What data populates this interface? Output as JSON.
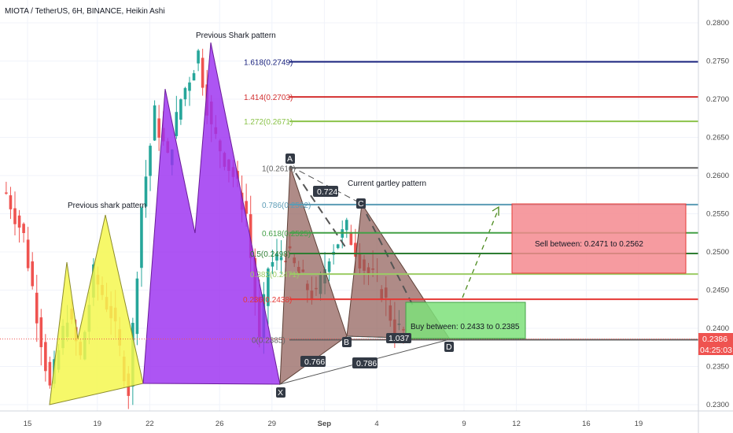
{
  "header": {
    "title": "MIOTA / TetherUS, 6H, BINANCE, Heikin Ashi"
  },
  "chart_data": {
    "type": "candlestick",
    "title": "MIOTA / TetherUS, 6H, BINANCE, Heikin Ashi",
    "y_ticks": [
      "0.2800",
      "0.2750",
      "0.2700",
      "0.2650",
      "0.2600",
      "0.2550",
      "0.2500",
      "0.2450",
      "0.2400",
      "0.2350",
      "0.2300"
    ],
    "x_ticks": [
      {
        "label": "15",
        "idx": 2
      },
      {
        "label": "19",
        "idx": 18
      },
      {
        "label": "22",
        "idx": 30
      },
      {
        "label": "26",
        "idx": 46
      },
      {
        "label": "29",
        "idx": 58
      },
      {
        "label": "Sep",
        "idx": 70
      },
      {
        "label": "4",
        "idx": 82
      },
      {
        "label": "9",
        "idx": 102
      },
      {
        "label": "12",
        "idx": 114
      },
      {
        "label": "16",
        "idx": 130
      },
      {
        "label": "19",
        "idx": 142
      }
    ],
    "ylim": [
      0.2287,
      0.2825
    ],
    "price_badge": "0.2386",
    "countdown_badge": "04:25:03",
    "current_price": 0.2386,
    "colors": {
      "up": "#26a69a",
      "down": "#ef5350",
      "bg": "#ffffff"
    },
    "annotations": {
      "previous_shark_left": "Previous shark pattern",
      "previous_shark_top": "Previous Shark pattern",
      "current_gartley": "Current gartley pattern",
      "point_A": "A",
      "point_B": "B",
      "point_C": "C",
      "point_D": "D",
      "point_X": "X",
      "ratio_xa_c": "0.724",
      "ratio_xb": "0.766",
      "ratio_xd": "0.786",
      "ratio_bd": "1.037",
      "sell_zone": "Sell between: 0.2471 to 0.2562",
      "buy_zone": "Buy between: 0.2433 to 0.2385"
    },
    "fib_levels": [
      {
        "label": "1.618(0.2749)",
        "value": 0.2749,
        "color": "#1a237e"
      },
      {
        "label": "1.414(0.2703)",
        "value": 0.2703,
        "color": "#d32f2f"
      },
      {
        "label": "1.272(0.2671)",
        "value": 0.2671,
        "color": "#8bc34a"
      },
      {
        "label": "1(0.2610)",
        "value": 0.261,
        "color": "#616161"
      },
      {
        "label": "0.786(0.2562)",
        "value": 0.2562,
        "color": "#5a9bb5"
      },
      {
        "label": "0.618(0.2525)",
        "value": 0.2525,
        "color": "#43a047"
      },
      {
        "label": "0.5(0.2498)",
        "value": 0.2498,
        "color": "#2e7d32"
      },
      {
        "label": "0.382(0.2471)",
        "value": 0.2471,
        "color": "#9ccc65"
      },
      {
        "label": "0.236(0.2438)",
        "value": 0.2438,
        "color": "#e53935"
      },
      {
        "label": "0(0.2385)",
        "value": 0.2385,
        "color": "#616161"
      }
    ]
  }
}
